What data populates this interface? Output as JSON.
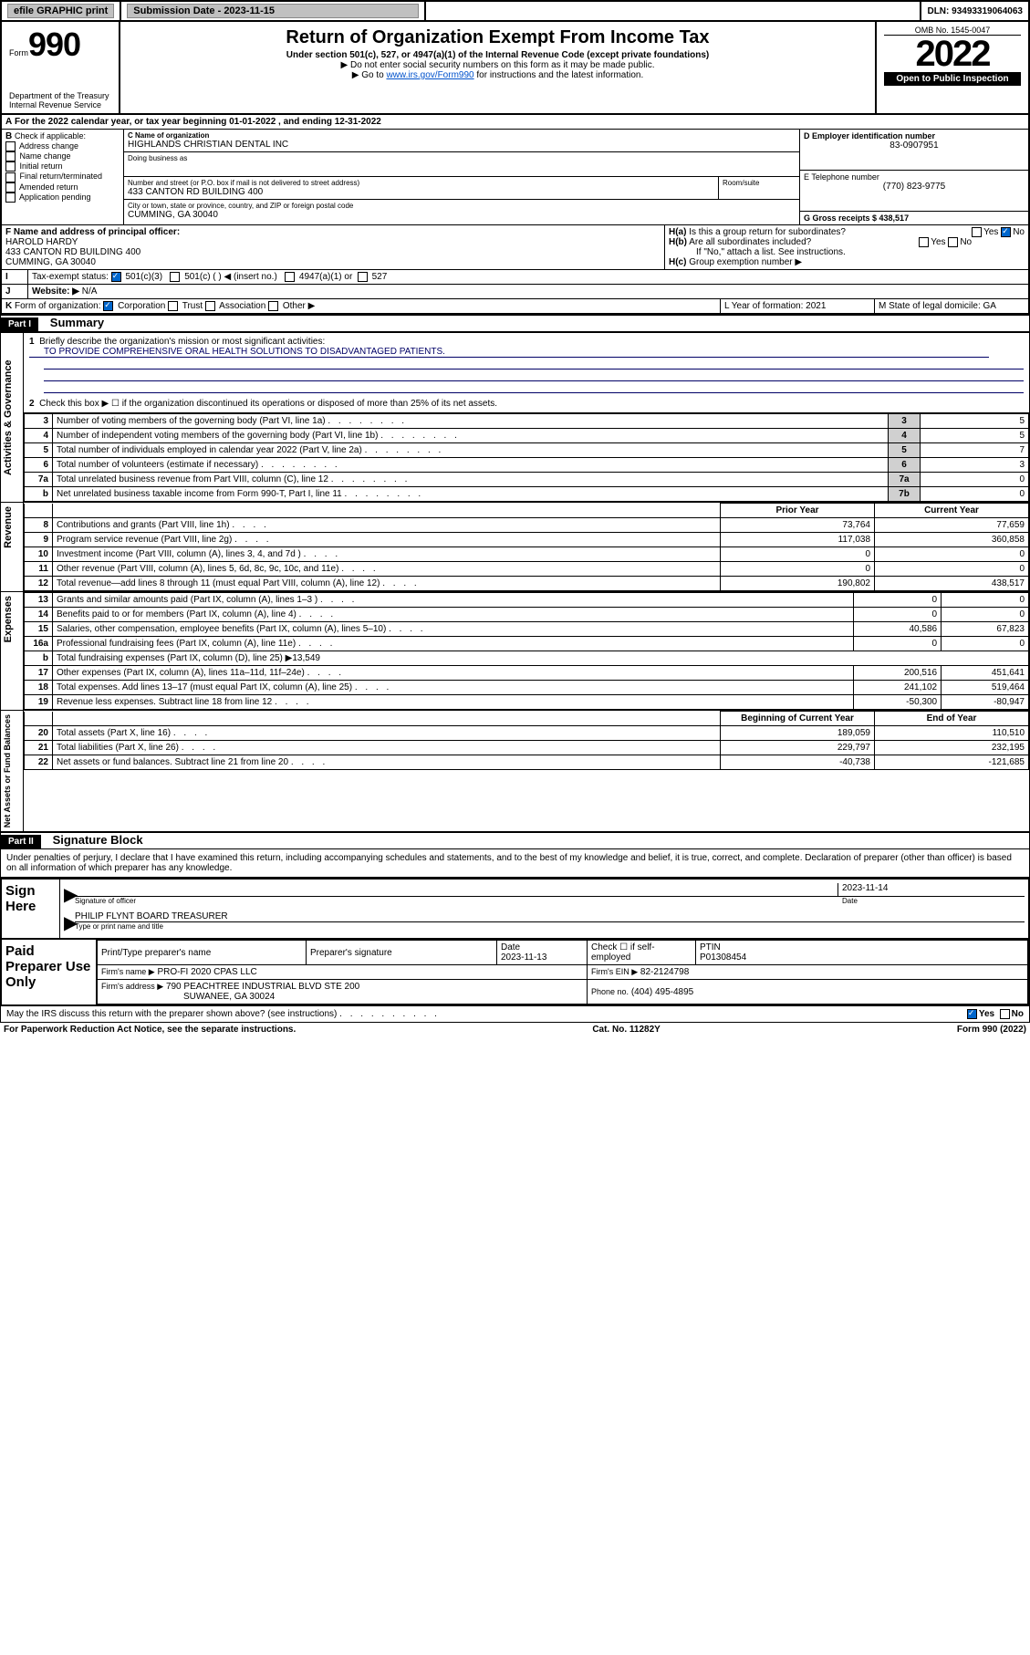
{
  "header": {
    "efile": "efile GRAPHIC print",
    "subdate_lbl": "Submission Date - 2023-11-15",
    "dln": "DLN: 93493319064063"
  },
  "form": {
    "formword": "Form",
    "num": "990",
    "title": "Return of Organization Exempt From Income Tax",
    "subtitle": "Under section 501(c), 527, or 4947(a)(1) of the Internal Revenue Code (except private foundations)",
    "warn": "▶ Do not enter social security numbers on this form as it may be made public.",
    "goto_pre": "▶ Go to ",
    "goto_link": "www.irs.gov/Form990",
    "goto_post": " for instructions and the latest information.",
    "dept": "Department of the Treasury",
    "irs": "Internal Revenue Service",
    "omb": "OMB No. 1545-0047",
    "year": "2022",
    "open": "Open to Public Inspection"
  },
  "A": {
    "text": "For the 2022 calendar year, or tax year beginning 01-01-2022    , and ending 12-31-2022"
  },
  "B": {
    "hdr": "Check if applicable:",
    "items": [
      "Address change",
      "Name change",
      "Initial return",
      "Final return/terminated",
      "Amended return",
      "Application pending"
    ]
  },
  "C": {
    "lbl": "C Name of organization",
    "name": "HIGHLANDS CHRISTIAN DENTAL INC",
    "dba_lbl": "Doing business as",
    "addr_lbl": "Number and street (or P.O. box if mail is not delivered to street address)",
    "room_lbl": "Room/suite",
    "addr": "433 CANTON RD BUILDING 400",
    "city_lbl": "City or town, state or province, country, and ZIP or foreign postal code",
    "city": "CUMMING, GA  30040"
  },
  "D": {
    "lbl": "D Employer identification number",
    "val": "83-0907951"
  },
  "E": {
    "lbl": "E Telephone number",
    "val": "(770) 823-9775"
  },
  "G": {
    "lbl": "G Gross receipts $ 438,517"
  },
  "F": {
    "lbl": "F  Name and address of principal officer:",
    "name": "HAROLD HARDY",
    "addr": "433 CANTON RD BUILDING 400",
    "city": "CUMMING, GA  30040"
  },
  "H": {
    "a": "Is this a group return for subordinates?",
    "b": "Are all subordinates included?",
    "bno": "If \"No,\" attach a list. See instructions.",
    "c": "Group exemption number ▶"
  },
  "I": {
    "lbl": "Tax-exempt status:",
    "opts": [
      "501(c)(3)",
      "501(c) (  ) ◀ (insert no.)",
      "4947(a)(1) or",
      "527"
    ]
  },
  "J": {
    "lbl": "Website: ▶",
    "val": "N/A"
  },
  "K": {
    "lbl": "Form of organization:",
    "opts": [
      "Corporation",
      "Trust",
      "Association",
      "Other ▶"
    ]
  },
  "L": {
    "lbl": "L Year of formation: 2021"
  },
  "M": {
    "lbl": "M State of legal domicile: GA"
  },
  "part1": {
    "title": "Part I",
    "name": "Summary",
    "q1": "Briefly describe the organization's mission or most significant activities:",
    "q1a": "TO PROVIDE COMPREHENSIVE ORAL HEALTH SOLUTIONS TO DISADVANTAGED PATIENTS.",
    "q2": "Check this box ▶ ☐  if the organization discontinued its operations or disposed of more than 25% of its net assets.",
    "lines_gov": [
      {
        "n": "3",
        "t": "Number of voting members of the governing body (Part VI, line 1a)",
        "v": "5"
      },
      {
        "n": "4",
        "t": "Number of independent voting members of the governing body (Part VI, line 1b)",
        "v": "5"
      },
      {
        "n": "5",
        "t": "Total number of individuals employed in calendar year 2022 (Part V, line 2a)",
        "v": "7"
      },
      {
        "n": "6",
        "t": "Total number of volunteers (estimate if necessary)",
        "v": "3"
      },
      {
        "n": "7a",
        "t": "Total unrelated business revenue from Part VIII, column (C), line 12",
        "v": "0"
      },
      {
        "n": "",
        "nb": "b",
        "t": "Net unrelated business taxable income from Form 990-T, Part I, line 11",
        "k": "7b",
        "v": "0"
      }
    ],
    "col_prior": "Prior Year",
    "col_curr": "Current Year",
    "lines_rev": [
      {
        "n": "8",
        "t": "Contributions and grants (Part VIII, line 1h)",
        "p": "73,764",
        "c": "77,659"
      },
      {
        "n": "9",
        "t": "Program service revenue (Part VIII, line 2g)",
        "p": "117,038",
        "c": "360,858"
      },
      {
        "n": "10",
        "t": "Investment income (Part VIII, column (A), lines 3, 4, and 7d )",
        "p": "0",
        "c": "0"
      },
      {
        "n": "11",
        "t": "Other revenue (Part VIII, column (A), lines 5, 6d, 8c, 9c, 10c, and 11e)",
        "p": "0",
        "c": "0"
      },
      {
        "n": "12",
        "t": "Total revenue—add lines 8 through 11 (must equal Part VIII, column (A), line 12)",
        "p": "190,802",
        "c": "438,517"
      }
    ],
    "lines_exp": [
      {
        "n": "13",
        "t": "Grants and similar amounts paid (Part IX, column (A), lines 1–3 )",
        "p": "0",
        "c": "0"
      },
      {
        "n": "14",
        "t": "Benefits paid to or for members (Part IX, column (A), line 4)",
        "p": "0",
        "c": "0"
      },
      {
        "n": "15",
        "t": "Salaries, other compensation, employee benefits (Part IX, column (A), lines 5–10)",
        "p": "40,586",
        "c": "67,823"
      },
      {
        "n": "16a",
        "t": "Professional fundraising fees (Part IX, column (A), line 11e)",
        "p": "0",
        "c": "0"
      },
      {
        "n": "b",
        "t": "Total fundraising expenses (Part IX, column (D), line 25) ▶13,549",
        "p": "",
        "c": "",
        "nobox": true
      },
      {
        "n": "17",
        "t": "Other expenses (Part IX, column (A), lines 11a–11d, 11f–24e)",
        "p": "200,516",
        "c": "451,641"
      },
      {
        "n": "18",
        "t": "Total expenses. Add lines 13–17 (must equal Part IX, column (A), line 25)",
        "p": "241,102",
        "c": "519,464"
      },
      {
        "n": "19",
        "t": "Revenue less expenses. Subtract line 18 from line 12",
        "p": "-50,300",
        "c": "-80,947"
      }
    ],
    "col_beg": "Beginning of Current Year",
    "col_end": "End of Year",
    "lines_net": [
      {
        "n": "20",
        "t": "Total assets (Part X, line 16)",
        "p": "189,059",
        "c": "110,510"
      },
      {
        "n": "21",
        "t": "Total liabilities (Part X, line 26)",
        "p": "229,797",
        "c": "232,195"
      },
      {
        "n": "22",
        "t": "Net assets or fund balances. Subtract line 21 from line 20",
        "p": "-40,738",
        "c": "-121,685"
      }
    ],
    "sidebars": [
      "Activities & Governance",
      "Revenue",
      "Expenses",
      "Net Assets or Fund Balances"
    ]
  },
  "part2": {
    "title": "Part II",
    "name": "Signature Block",
    "decl": "Under penalties of perjury, I declare that I have examined this return, including accompanying schedules and statements, and to the best of my knowledge and belief, it is true, correct, and complete. Declaration of preparer (other than officer) is based on all information of which preparer has any knowledge.",
    "sign": "Sign Here",
    "sigoff": "Signature of officer",
    "sigdate": "2023-11-14",
    "sigdate_lbl": "Date",
    "signame": "PHILIP FLYNT  BOARD TREASURER",
    "signame_lbl": "Type or print name and title",
    "paid": "Paid Preparer Use Only",
    "pcols": [
      "Print/Type preparer's name",
      "Preparer's signature",
      "Date",
      "",
      "PTIN"
    ],
    "pdate": "2023-11-13",
    "pcheck": "Check ☐ if self-employed",
    "ptin": "P01308454",
    "firm_lbl": "Firm's name    ▶",
    "firm": "PRO-FI 2020 CPAS LLC",
    "fein_lbl": "Firm's EIN ▶",
    "fein": "82-2124798",
    "faddr_lbl": "Firm's address ▶",
    "faddr1": "790 PEACHTREE INDUSTRIAL BLVD STE 200",
    "faddr2": "SUWANEE, GA  30024",
    "fphone_lbl": "Phone no.",
    "fphone": "(404) 495-4895",
    "discuss": "May the IRS discuss this return with the preparer shown above? (see instructions)"
  },
  "footer": {
    "pra": "For Paperwork Reduction Act Notice, see the separate instructions.",
    "cat": "Cat. No. 11282Y",
    "form": "Form 990 (2022)"
  }
}
